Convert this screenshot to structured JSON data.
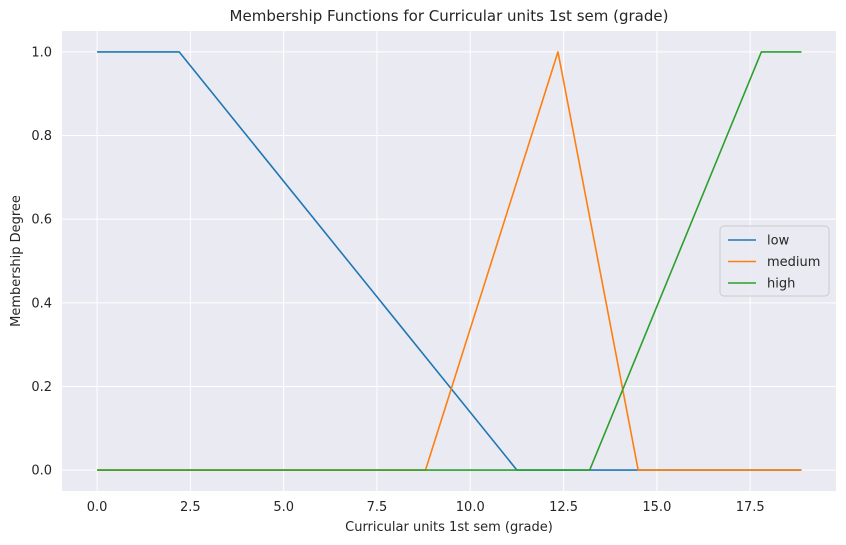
{
  "chart_data": {
    "type": "line",
    "title": "Membership Functions for Curricular units 1st sem (grade)",
    "xlabel": "Curricular units 1st sem (grade)",
    "ylabel": "Membership Degree",
    "xlim": [
      -0.94,
      19.8
    ],
    "ylim": [
      -0.05,
      1.05
    ],
    "xticks": [
      0.0,
      2.5,
      5.0,
      7.5,
      10.0,
      12.5,
      15.0,
      17.5
    ],
    "xtick_labels": [
      "0.0",
      "2.5",
      "5.0",
      "7.5",
      "10.0",
      "12.5",
      "15.0",
      "17.5"
    ],
    "yticks": [
      0.0,
      0.2,
      0.4,
      0.6,
      0.8,
      1.0
    ],
    "ytick_labels": [
      "0.0",
      "0.2",
      "0.4",
      "0.6",
      "0.8",
      "1.0"
    ],
    "grid": true,
    "legend_position": "center-right",
    "background": "#eaeaf2",
    "series": [
      {
        "name": "low",
        "color": "#1f77b4",
        "x": [
          0.0,
          2.2,
          11.25,
          18.875
        ],
        "y": [
          1.0,
          1.0,
          0.0,
          0.0
        ]
      },
      {
        "name": "medium",
        "color": "#ff7f0e",
        "x": [
          0.0,
          8.8,
          12.35,
          14.5,
          18.875
        ],
        "y": [
          0.0,
          0.0,
          1.0,
          0.0,
          0.0
        ]
      },
      {
        "name": "high",
        "color": "#2ca02c",
        "x": [
          0.0,
          13.2,
          17.8,
          18.875
        ],
        "y": [
          0.0,
          0.0,
          1.0,
          1.0
        ]
      }
    ]
  }
}
